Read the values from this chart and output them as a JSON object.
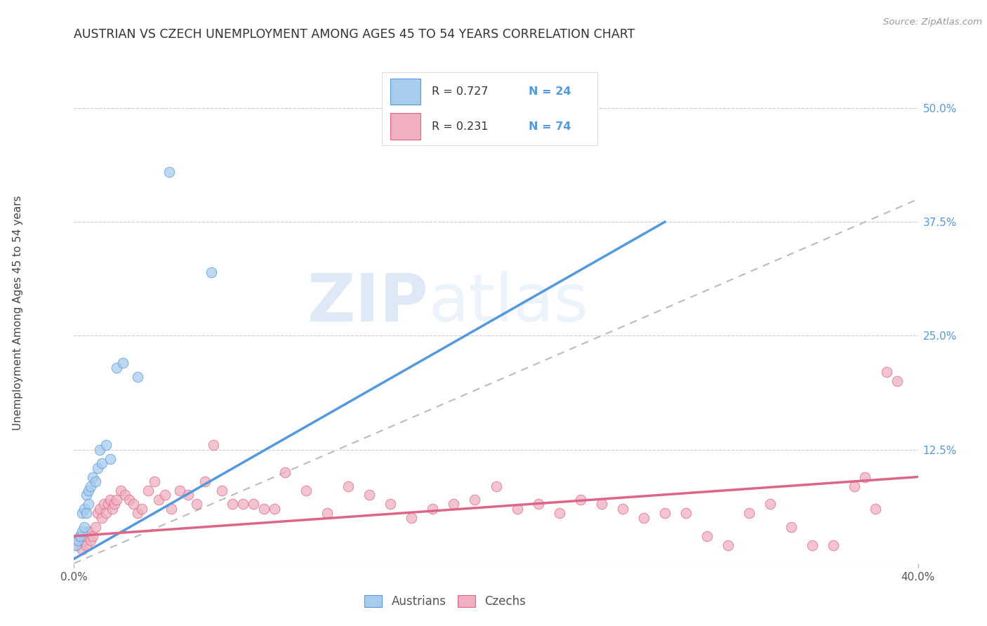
{
  "title": "AUSTRIAN VS CZECH UNEMPLOYMENT AMONG AGES 45 TO 54 YEARS CORRELATION CHART",
  "source": "Source: ZipAtlas.com",
  "ylabel": "Unemployment Among Ages 45 to 54 years",
  "xlim": [
    0.0,
    0.4
  ],
  "ylim": [
    0.0,
    0.55
  ],
  "yticks_right": [
    0.0,
    0.125,
    0.25,
    0.375,
    0.5
  ],
  "ytick_labels_right": [
    "",
    "12.5%",
    "25.0%",
    "37.5%",
    "50.0%"
  ],
  "xticks": [
    0.0,
    0.4
  ],
  "xtick_labels": [
    "0.0%",
    "40.0%"
  ],
  "legend_r_austrians": "0.727",
  "legend_n_austrians": "24",
  "legend_r_czechs": "0.231",
  "legend_n_czechs": "74",
  "blue_color": "#A8CCEE",
  "blue_line_color": "#5599DD",
  "pink_color": "#F0B0C0",
  "pink_line_color": "#DD6688",
  "ref_line_color": "#BBBBBB",
  "background_color": "#FFFFFF",
  "watermark_zip": "ZIP",
  "watermark_atlas": "atlas",
  "blue_line_x0": 0.0,
  "blue_line_y0": 0.005,
  "blue_line_x1": 0.28,
  "blue_line_y1": 0.375,
  "pink_line_x0": 0.0,
  "pink_line_y0": 0.03,
  "pink_line_x1": 0.4,
  "pink_line_y1": 0.095,
  "austrians_x": [
    0.001,
    0.002,
    0.003,
    0.004,
    0.004,
    0.005,
    0.005,
    0.006,
    0.006,
    0.007,
    0.007,
    0.008,
    0.009,
    0.01,
    0.011,
    0.012,
    0.013,
    0.015,
    0.017,
    0.02,
    0.023,
    0.03,
    0.045,
    0.065
  ],
  "austrians_y": [
    0.02,
    0.025,
    0.03,
    0.035,
    0.055,
    0.04,
    0.06,
    0.055,
    0.075,
    0.065,
    0.08,
    0.085,
    0.095,
    0.09,
    0.105,
    0.125,
    0.11,
    0.13,
    0.115,
    0.215,
    0.22,
    0.205,
    0.43,
    0.32
  ],
  "czechs_x": [
    0.001,
    0.002,
    0.003,
    0.004,
    0.005,
    0.006,
    0.007,
    0.008,
    0.009,
    0.01,
    0.011,
    0.012,
    0.013,
    0.014,
    0.015,
    0.016,
    0.017,
    0.018,
    0.019,
    0.02,
    0.022,
    0.024,
    0.026,
    0.028,
    0.03,
    0.032,
    0.035,
    0.038,
    0.04,
    0.043,
    0.046,
    0.05,
    0.054,
    0.058,
    0.062,
    0.066,
    0.07,
    0.075,
    0.08,
    0.085,
    0.09,
    0.095,
    0.1,
    0.11,
    0.12,
    0.13,
    0.14,
    0.15,
    0.16,
    0.17,
    0.18,
    0.19,
    0.2,
    0.21,
    0.22,
    0.23,
    0.24,
    0.25,
    0.26,
    0.27,
    0.28,
    0.29,
    0.3,
    0.31,
    0.32,
    0.33,
    0.34,
    0.35,
    0.36,
    0.37,
    0.375,
    0.38,
    0.385,
    0.39
  ],
  "czechs_y": [
    0.02,
    0.025,
    0.03,
    0.015,
    0.025,
    0.02,
    0.035,
    0.025,
    0.03,
    0.04,
    0.055,
    0.06,
    0.05,
    0.065,
    0.055,
    0.065,
    0.07,
    0.06,
    0.065,
    0.07,
    0.08,
    0.075,
    0.07,
    0.065,
    0.055,
    0.06,
    0.08,
    0.09,
    0.07,
    0.075,
    0.06,
    0.08,
    0.075,
    0.065,
    0.09,
    0.13,
    0.08,
    0.065,
    0.065,
    0.065,
    0.06,
    0.06,
    0.1,
    0.08,
    0.055,
    0.085,
    0.075,
    0.065,
    0.05,
    0.06,
    0.065,
    0.07,
    0.085,
    0.06,
    0.065,
    0.055,
    0.07,
    0.065,
    0.06,
    0.05,
    0.055,
    0.055,
    0.03,
    0.02,
    0.055,
    0.065,
    0.04,
    0.02,
    0.02,
    0.085,
    0.095,
    0.06,
    0.21,
    0.2
  ]
}
